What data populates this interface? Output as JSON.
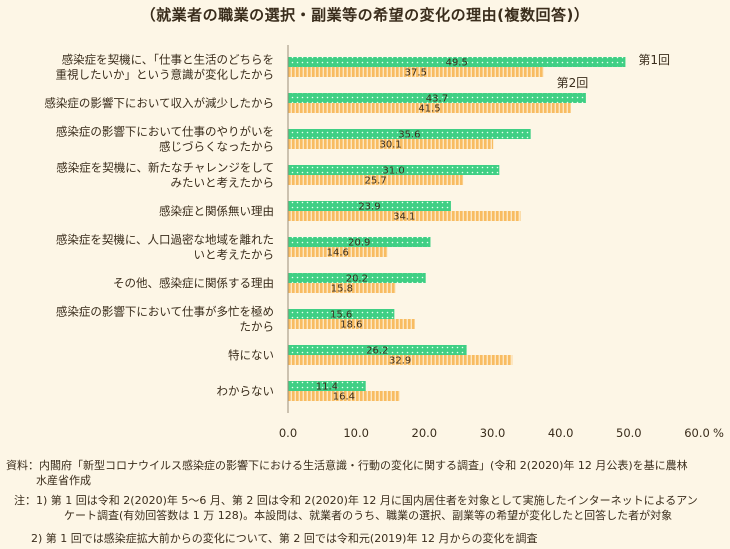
{
  "title": "（就業者の職業の選択・副業等の希望の変化の理由(複数回答)）",
  "chart_data": {
    "type": "bar",
    "orientation": "horizontal",
    "categories": [
      [
        "感染症を契機に、「仕事と生活のどちらを",
        "重視したいか」という意識が変化したから"
      ],
      [
        "感染症の影響下において収入が減少したから"
      ],
      [
        "感染症の影響下において仕事のやりがいを",
        "感じづらくなったから"
      ],
      [
        "感染症を契機に、新たなチャレンジをして",
        "みたいと考えたから"
      ],
      [
        "感染症と関係無い理由"
      ],
      [
        "感染症を契機に、人口過密な地域を離れた",
        "いと考えたから"
      ],
      [
        "その他、感染症に関係する理由"
      ],
      [
        "感染症の影響下において仕事が多忙を極め",
        "たから"
      ],
      [
        "特にない"
      ],
      [
        "わからない"
      ]
    ],
    "series": [
      {
        "name": "第1回",
        "color": "#3fcf84",
        "pattern": "dots",
        "values": [
          49.5,
          43.7,
          35.6,
          31.0,
          23.9,
          20.9,
          20.2,
          15.6,
          26.2,
          11.4
        ],
        "labels": [
          "49.5",
          "43.7",
          "35.6",
          "31.0",
          "23.9",
          "20.9",
          "20.2",
          "15.6",
          "26.2",
          "11.4"
        ]
      },
      {
        "name": "第2回",
        "color": "#f8bc62",
        "pattern": "vertical-stripes",
        "values": [
          37.5,
          41.5,
          30.1,
          25.7,
          34.1,
          14.6,
          15.8,
          18.6,
          32.9,
          16.4
        ],
        "labels": [
          "37.5",
          "41.5",
          "30.1",
          "25.7",
          "34.1",
          "14.6",
          "15.8",
          "18.6",
          "32.9",
          "16.4"
        ]
      }
    ],
    "xlim": [
      0,
      60
    ],
    "xticks": [
      "0.0",
      "10.0",
      "20.0",
      "30.0",
      "40.0",
      "50.0",
      "60.0"
    ],
    "xunit": "%",
    "grid": false,
    "legend": "labels at the end of the first category's bars"
  },
  "notes": [
    {
      "tag": "資料：",
      "lines": [
        "内閣府「新型コロナウイルス感染症の影響下における生活意識・行動の変化に関する調査」(令和 2(2020)年 12 月公表)を基に農林",
        "水産省作成"
      ]
    },
    {
      "tag": "注：1)",
      "lines": [
        "第 1 回は令和 2(2020)年 5～6 月、第 2 回は令和 2(2020)年 12 月に国内居住者を対象として実施したインターネットによるアン",
        "ケート調査(有効回答数は 1 万 128)。本設問は、就業者のうち、職業の選択、副業等の希望が変化したと回答した者が対象"
      ]
    },
    {
      "tag": "2)",
      "lines": [
        "第 1 回では感染症拡大前からの変化について、第 2 回では令和元(2019)年 12 月からの変化を調査"
      ]
    }
  ]
}
